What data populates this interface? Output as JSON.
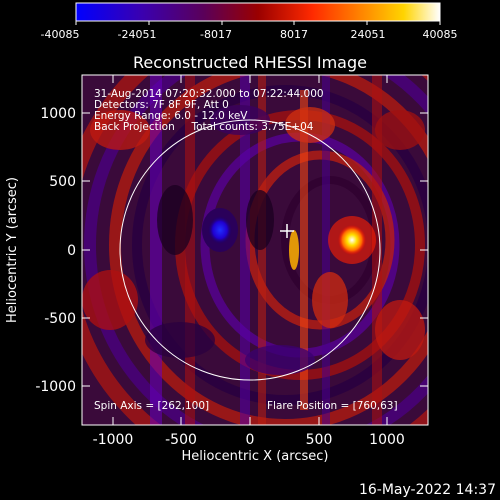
{
  "colorbar": {
    "ticks": [
      "-40085",
      "-24051",
      "-8017",
      "8017",
      "24051",
      "40085"
    ],
    "gradient": [
      "#0000ff",
      "#3a00b0",
      "#5a005a",
      "#a00000",
      "#ff3a00",
      "#ff9a00",
      "#ffd800",
      "#ffffff"
    ]
  },
  "plot": {
    "title": "Reconstructed RHESSI Image",
    "xlabel": "Heliocentric X (arcsec)",
    "ylabel": "Heliocentric Y (arcsec)",
    "xticks": [
      "-1000",
      "-500",
      "0",
      "500",
      "1000"
    ],
    "yticks": [
      "1000",
      "500",
      "0",
      "-500",
      "-1000"
    ],
    "info_lines": [
      "31-Aug-2014 07:20:32.000 to 07:22:44.000",
      "Detectors: 7F 8F 9F, Att 0",
      "Energy Range: 6.0 - 12.0 keV",
      "Back Projection     Total counts: 3.75E+04"
    ],
    "spin_axis": "Spin Axis = [262,100]",
    "flare_position": "Flare Position = [760,63]"
  },
  "footer": {
    "date": "16-May-2022 14:37"
  }
}
